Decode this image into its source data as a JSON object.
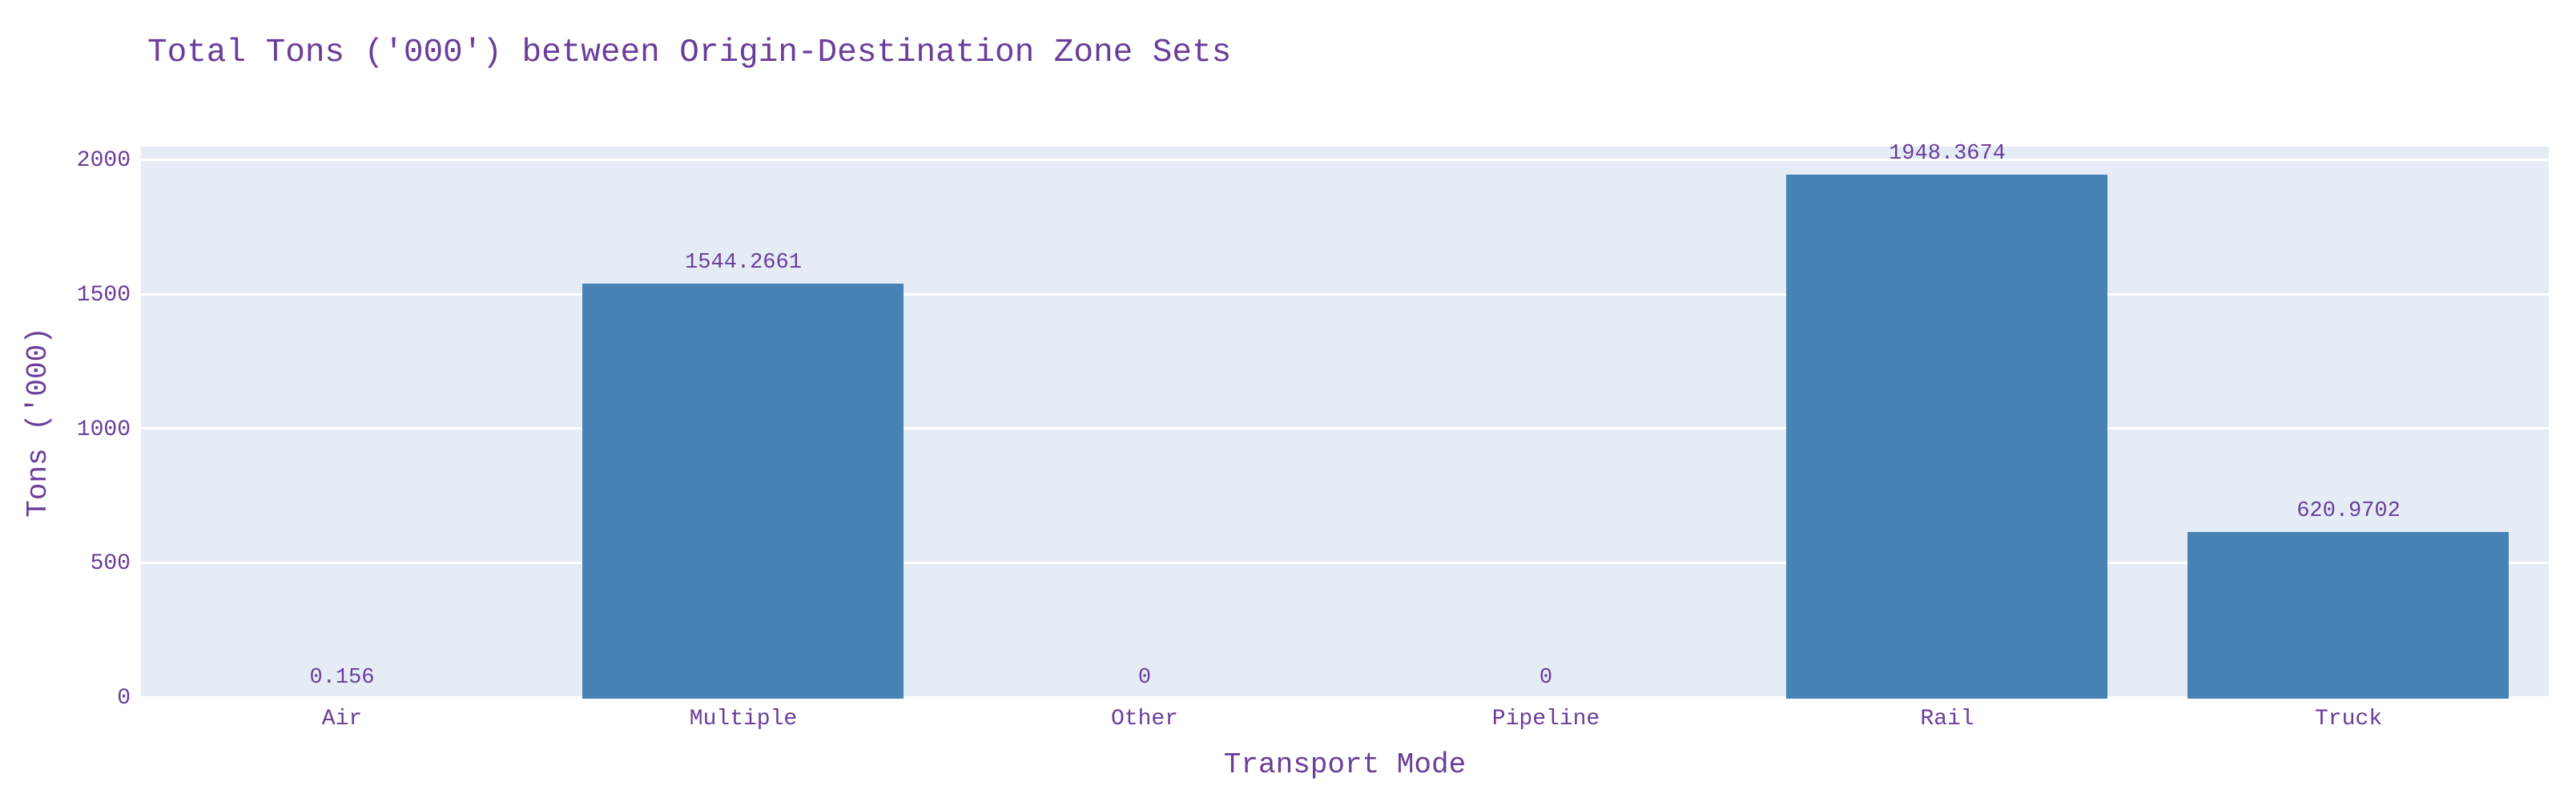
{
  "chart_data": {
    "type": "bar",
    "title": "Total Tons ('000') between Origin-Destination Zone Sets",
    "xlabel": "Transport Mode",
    "ylabel": "Tons ('000)",
    "categories": [
      "Air",
      "Multiple",
      "Other",
      "Pipeline",
      "Rail",
      "Truck"
    ],
    "values": [
      0.156,
      1544.2661,
      0,
      0,
      1948.3674,
      620.9702
    ],
    "bar_labels": [
      "0.156",
      "1544.2661",
      "0",
      "0",
      "1948.3674",
      "620.9702"
    ],
    "yticks": [
      "0",
      "500",
      "1000",
      "1500",
      "2000"
    ],
    "ytick_values": [
      0,
      500,
      1000,
      1500,
      2000
    ],
    "ylim": [
      0,
      2053
    ],
    "grid": true,
    "legend_position": "none",
    "colors": {
      "bar": "#4682b4",
      "zero_bar_edge": "rgba(255,255,255,0.9)",
      "plot_background": "#e5ecf6",
      "gridline": "#ffffff",
      "text": "#6a3d9a",
      "page_background": "#ffffff"
    }
  }
}
